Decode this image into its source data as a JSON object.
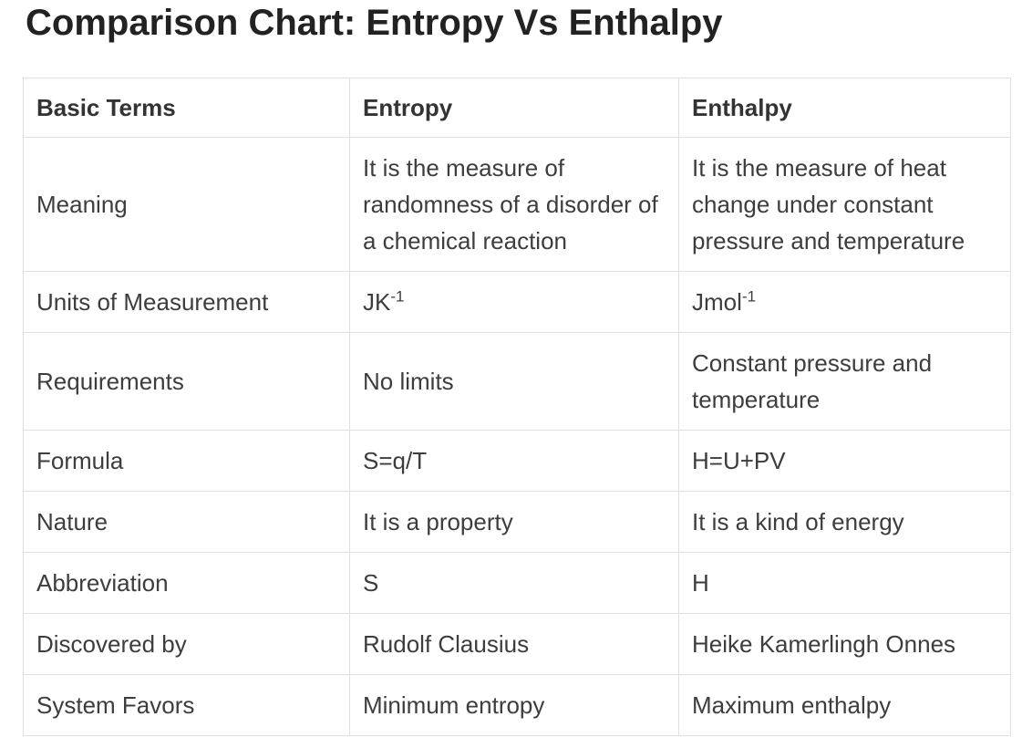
{
  "page_title": "Comparison Chart: Entropy Vs Enthalpy",
  "colors": {
    "background": "#ffffff",
    "title_text": "#222222",
    "body_text": "#3d3d3d",
    "table_border": "#e0e0e0"
  },
  "table": {
    "headers": [
      "Basic Terms",
      "Entropy",
      "Enthalpy"
    ],
    "rows": [
      {
        "term": "Meaning",
        "entropy": "It is the measure of randomness of a disorder of a chemical reaction",
        "enthalpy": "It is the measure of heat change under constant pressure and temperature"
      },
      {
        "term": "Units of Measurement",
        "entropy": {
          "base": "JK",
          "sup": "-1"
        },
        "enthalpy": {
          "base": "Jmol",
          "sup": "-1"
        }
      },
      {
        "term": "Requirements",
        "entropy": "No limits",
        "enthalpy": "Constant pressure and temperature"
      },
      {
        "term": "Formula",
        "entropy": "S=q/T",
        "enthalpy": "H=U+PV"
      },
      {
        "term": "Nature",
        "entropy": "It is a property",
        "enthalpy": "It is a kind of energy"
      },
      {
        "term": "Abbreviation",
        "entropy": "S",
        "enthalpy": "H"
      },
      {
        "term": "Discovered by",
        "entropy": "Rudolf Clausius",
        "enthalpy": "Heike Kamerlingh Onnes"
      },
      {
        "term": "System Favors",
        "entropy": "Minimum entropy",
        "enthalpy": "Maximum enthalpy"
      }
    ]
  }
}
